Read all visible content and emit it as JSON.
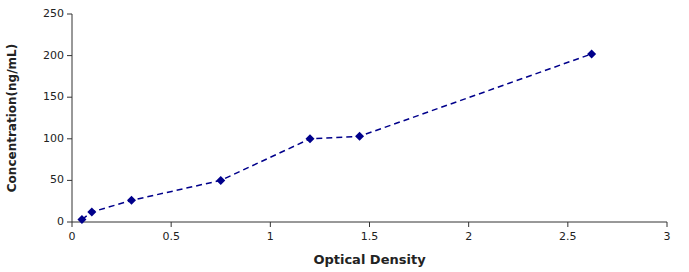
{
  "chart_data": {
    "type": "line",
    "xlabel": "Optical Density",
    "ylabel": "Concentration(ng/mL)",
    "x": [
      0.05,
      0.1,
      0.3,
      0.75,
      1.2,
      1.45,
      2.62
    ],
    "values": [
      3,
      12,
      26,
      50,
      100,
      103,
      202
    ],
    "color": "#00008B",
    "marker": "diamond",
    "line_style": "dashed",
    "xlim": [
      0,
      3
    ],
    "ylim": [
      0,
      250
    ],
    "xticks": [
      0,
      0.5,
      1,
      1.5,
      2,
      2.5,
      3
    ],
    "yticks": [
      0,
      50,
      100,
      150,
      200,
      250
    ],
    "grid": false
  }
}
